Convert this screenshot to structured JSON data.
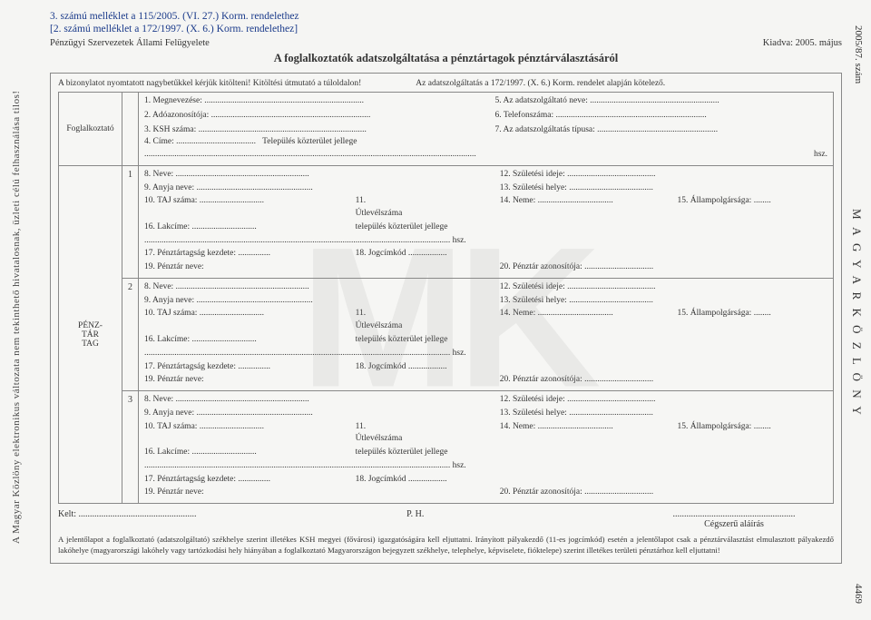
{
  "margins": {
    "left_text": "A Magyar Közlöny elektronikus változata nem tekinthető hivatalosnak, üzleti célú felhasználása tilos!",
    "right_top": "2005/87. szám",
    "right_mid": "M A G Y A R   K Ö Z L Ö N Y",
    "right_bot": "4469"
  },
  "header": {
    "line1": "3. számú melléklet a 115/2005. (VI. 27.) Korm. rendelethez",
    "line2": "[2. számú melléklet a 172/1997. (X. 6.) Korm. rendelethez]",
    "org": "Pénzügyi Szervezetek Állami Felügyelete",
    "issued": "Kiadva: 2005. május",
    "title": "A foglalkoztatók adatszolgáltatása a pénztártagok pénztárválasztásáról"
  },
  "notes": {
    "left": "A bizonylatot nyomtatott nagybetűkkel kérjük kitölteni! Kitöltési útmutató a túloldalon!",
    "right": "Az adatszolgáltatás a 172/1997. (X. 6.) Korm. rendelet alapján kötelező."
  },
  "employer": {
    "label": "Foglalkoztató",
    "fields_left": [
      "1. Megnevezése:",
      "2. Adóazonosítója:",
      "3. KSH száma:",
      "4. Címe:"
    ],
    "fields_right": [
      "5. Az adatszolgáltató neve:",
      "6. Telefonszáma:",
      "7. Az adatszolgáltatás típusa:"
    ],
    "addr_tail": "Település                                      közterület jellege",
    "addr_hsz": "hsz."
  },
  "member_section_label": "PÉNZ-\nTÁR\nTAG",
  "members": [
    {
      "n": "1"
    },
    {
      "n": "2"
    },
    {
      "n": "3"
    }
  ],
  "member_fields": {
    "f8": "8. Neve:",
    "f9": "9. Anyja neve:",
    "f10": "10. TAJ száma:",
    "f11": "11.",
    "f11b": "Útlevélszáma",
    "f12": "12. Születési ideje:",
    "f13": "13. Születési helye:",
    "f14": "14. Neme:",
    "f15": "15. Állampolgársága:",
    "f16": "16. Lakcíme:",
    "f16b": "település                              közterület jellege",
    "f16c": "hsz.",
    "f17": "17. Pénztártagság kezdete:",
    "f18": "18. Jogcímkód",
    "f19": "19. Pénztár neve:",
    "f20": "20. Pénztár azonosítója:"
  },
  "footer": {
    "kelt": "Kelt:",
    "ph": "P. H.",
    "sig": "Cégszerű aláírás",
    "note": "A jelentőlapot a foglalkoztató (adatszolgáltató) székhelye szerint illetékes KSH megyei (fővárosi) igazgatóságára kell eljuttatni. Irányított pályakezdő (11-es jogcímkód) esetén a jelentőlapot csak a pénztárválasztást elmulasztott pályakezdő lakóhelye (magyarországi lakóhely vagy tartózkodási hely hiányában a foglalkoztató Magyarországon bejegyzett székhelye, telephelye, képviselete, fióktelepe) szerint illetékes területi pénztárhoz kell eljuttatni!"
  }
}
